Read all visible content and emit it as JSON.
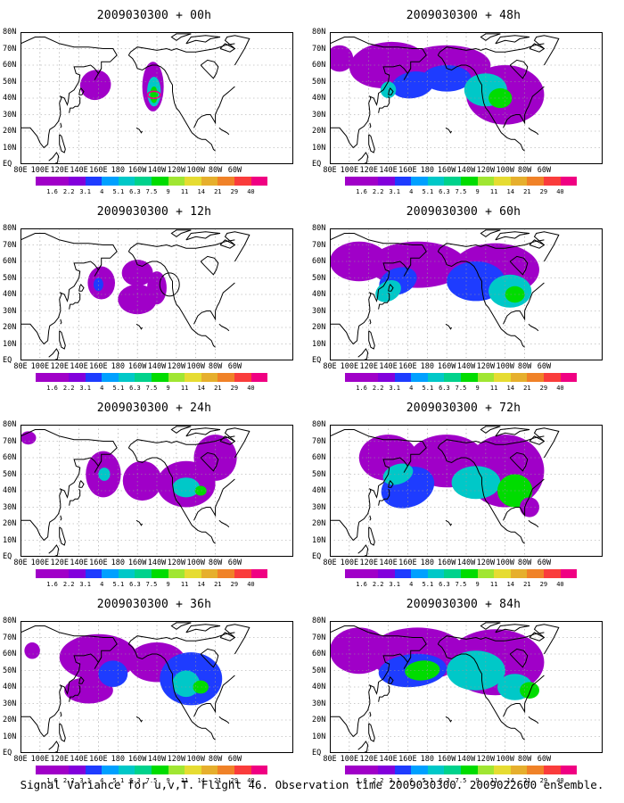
{
  "panels": [
    {
      "title": "2009030300 + 00h",
      "lead": 0
    },
    {
      "title": "2009030300 + 48h",
      "lead": 48
    },
    {
      "title": "2009030300 + 12h",
      "lead": 12
    },
    {
      "title": "2009030300 + 60h",
      "lead": 60
    },
    {
      "title": "2009030300 + 24h",
      "lead": 24
    },
    {
      "title": "2009030300 + 72h",
      "lead": 72
    },
    {
      "title": "2009030300 + 36h",
      "lead": 36
    },
    {
      "title": "2009030300 + 84h",
      "lead": 84
    }
  ],
  "lat_labels": [
    "80N",
    "70N",
    "60N",
    "50N",
    "40N",
    "30N",
    "20N",
    "10N",
    "EQ"
  ],
  "lon_labels": [
    "80E",
    "100E",
    "120E",
    "140E",
    "160E",
    "180",
    "160W",
    "140W",
    "120W",
    "100W",
    "80W",
    "60W"
  ],
  "colorbar": {
    "labels": [
      "1.6",
      "2.2",
      "3.1",
      "4",
      "5.1",
      "6.3",
      "7.5",
      "9",
      "11",
      "14",
      "21",
      "29",
      "40"
    ],
    "colors": [
      "#a000c8",
      "#8200dc",
      "#1e3cff",
      "#00a0ff",
      "#00c8c8",
      "#00d28c",
      "#00dc00",
      "#a0e632",
      "#e6dc32",
      "#e6af2d",
      "#f08228",
      "#fa3c3c",
      "#f00082"
    ]
  },
  "colors": {
    "fill_low": "#a000c8",
    "fill_mid": "#1e3cff",
    "fill_high": "#00c8c8",
    "fill_peak": "#00dc00",
    "contour_red": "#fa3c3c",
    "contour_pink": "#f00082"
  },
  "footer": "Signal Variance for u,v,T. Flight 46. Observation time 2009030300. 2009022600 ensemble."
}
